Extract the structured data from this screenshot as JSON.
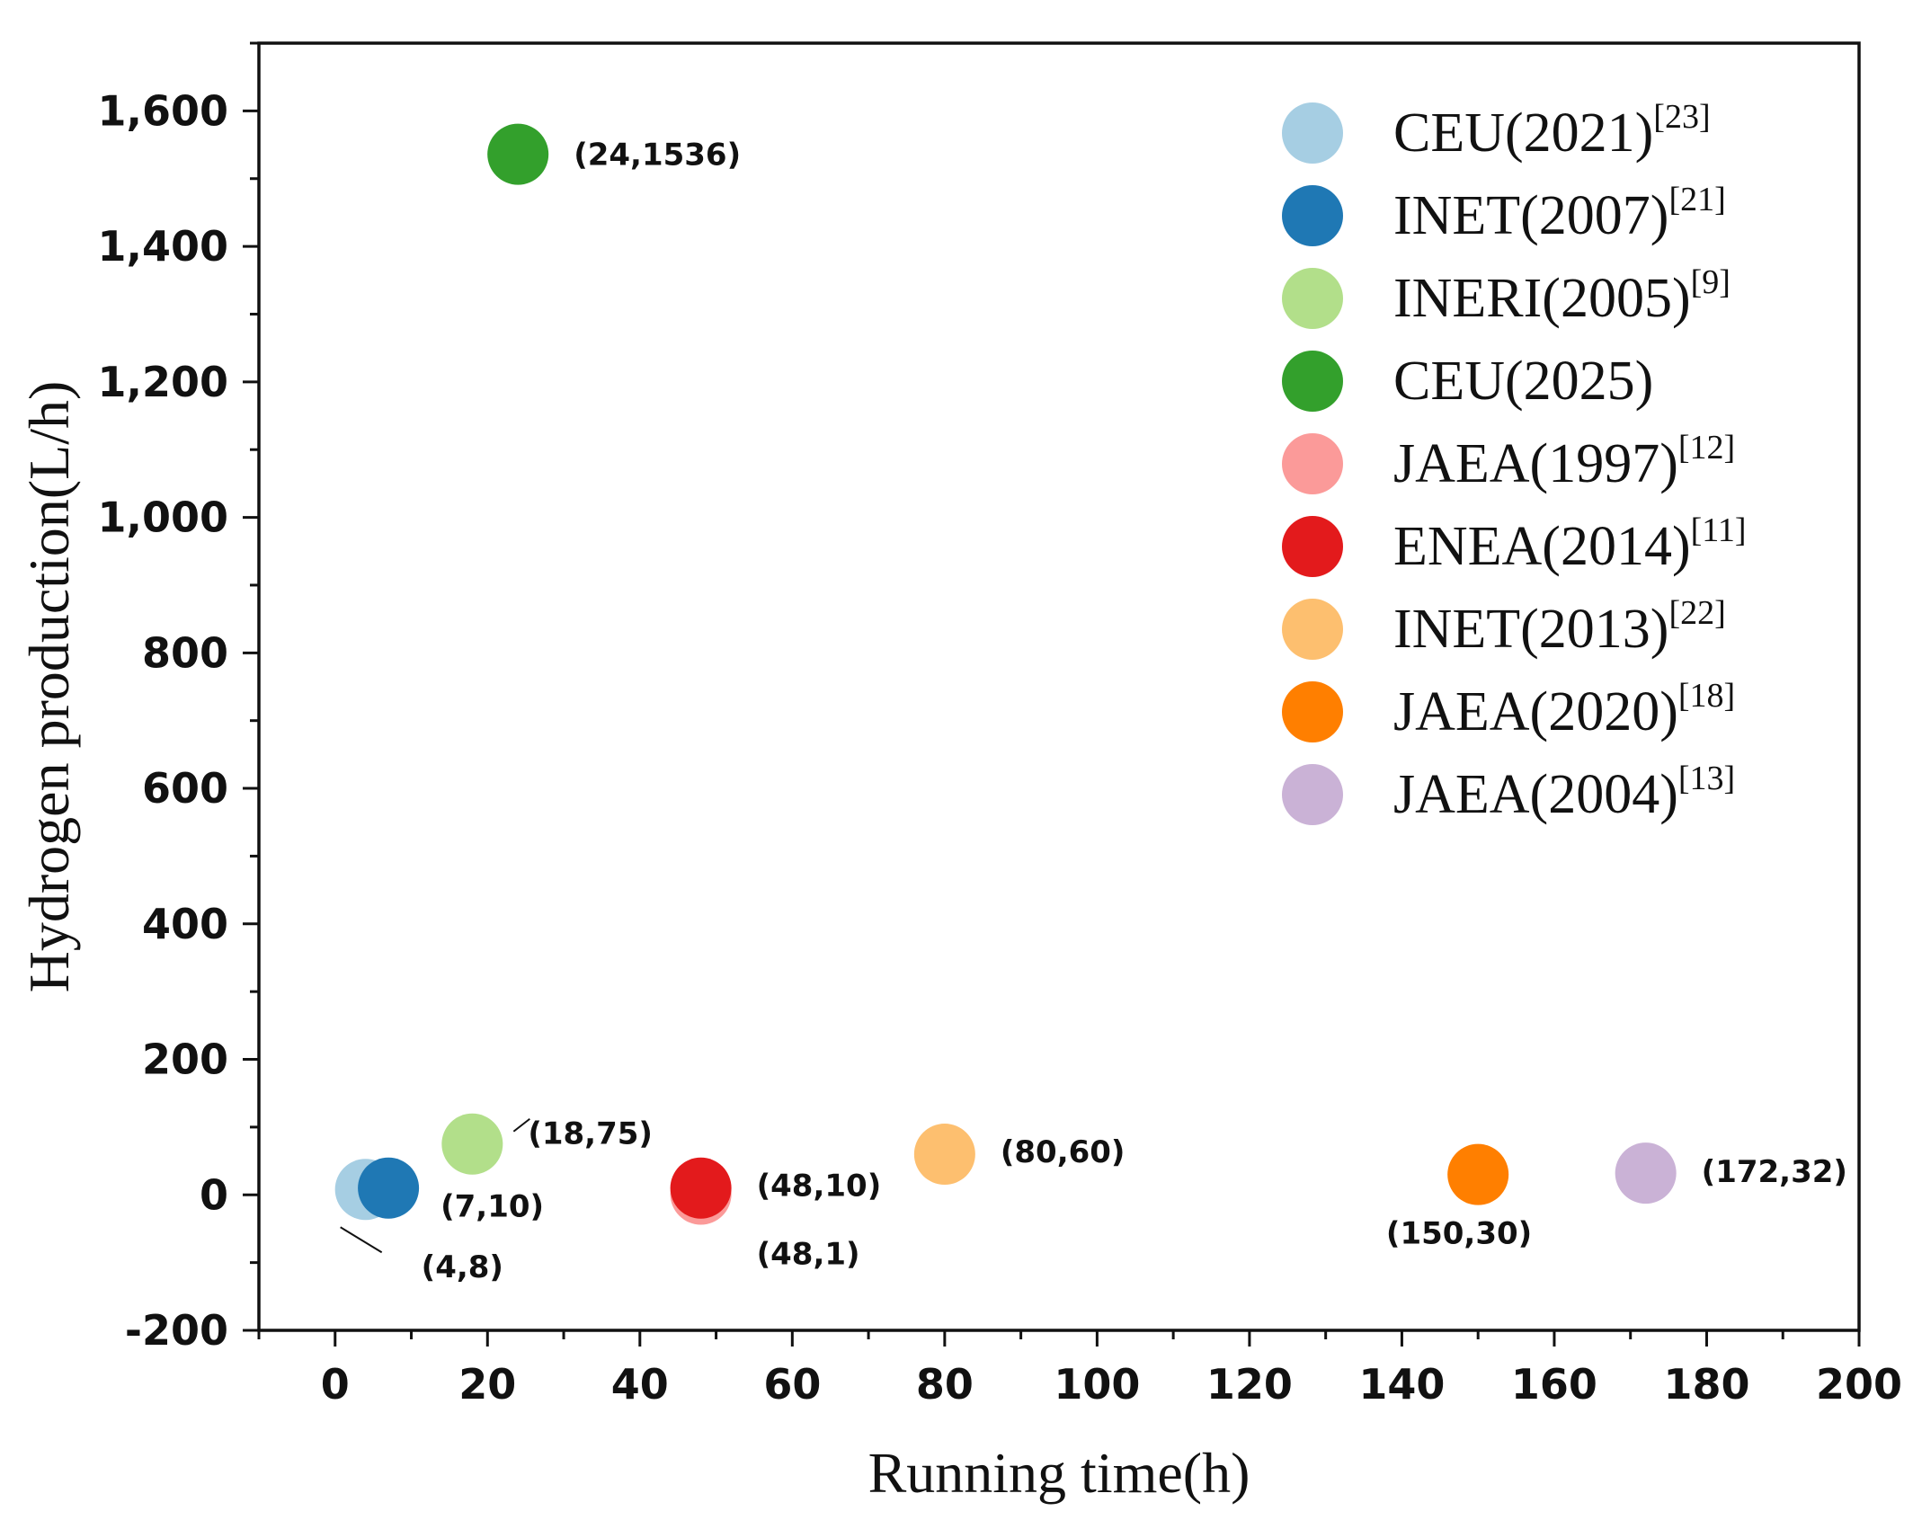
{
  "chart_data": {
    "type": "scatter",
    "title": "",
    "xlabel": "Running time(h)",
    "ylabel": "Hydrogen production(L/h)",
    "xlim": [
      -10,
      200
    ],
    "ylim": [
      -200,
      1700
    ],
    "xticks": [
      0,
      20,
      40,
      60,
      80,
      100,
      120,
      140,
      160,
      180,
      200
    ],
    "yticks": [
      -200,
      0,
      200,
      400,
      600,
      800,
      1000,
      1200,
      1400,
      1600
    ],
    "xtick_labels": [
      "0",
      "20",
      "40",
      "60",
      "80",
      "100",
      "120",
      "140",
      "160",
      "180",
      "200"
    ],
    "ytick_labels": [
      "-200",
      "0",
      "200",
      "400",
      "600",
      "800",
      "1,000",
      "1,200",
      "1,400",
      "1,600"
    ],
    "grid": false,
    "legend_position": "top-right",
    "series": [
      {
        "name": "CEU(2021)",
        "ref": "[23]",
        "color": "#a6cee3",
        "x": 4,
        "y": 8,
        "label": "(4,8)"
      },
      {
        "name": "INET(2007)",
        "ref": "[21]",
        "color": "#1f78b4",
        "x": 7,
        "y": 10,
        "label": "(7,10)"
      },
      {
        "name": "INERI(2005)",
        "ref": "[9]",
        "color": "#b2df8a",
        "x": 18,
        "y": 75,
        "label": "(18,75)"
      },
      {
        "name": "CEU(2025)",
        "ref": "",
        "color": "#33a02c",
        "x": 24,
        "y": 1536,
        "label": "(24,1536)"
      },
      {
        "name": "JAEA(1997)",
        "ref": "[12]",
        "color": "#fb9a99",
        "x": 48,
        "y": 1,
        "label": "(48,1)"
      },
      {
        "name": "ENEA(2014)",
        "ref": "[11]",
        "color": "#e31a1c",
        "x": 48,
        "y": 10,
        "label": "(48,10)"
      },
      {
        "name": "INET(2013)",
        "ref": "[22]",
        "color": "#fdbf6f",
        "x": 80,
        "y": 60,
        "label": "(80,60)"
      },
      {
        "name": "JAEA(2020)",
        "ref": "[18]",
        "color": "#ff7f00",
        "x": 150,
        "y": 30,
        "label": "(150,30)"
      },
      {
        "name": "JAEA(2004)",
        "ref": "[13]",
        "color": "#cab2d6",
        "x": 172,
        "y": 32,
        "label": "(172,32)"
      }
    ]
  }
}
